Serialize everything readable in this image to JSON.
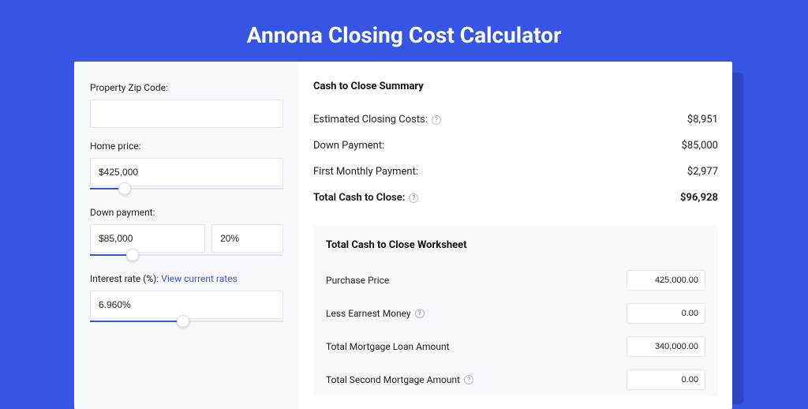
{
  "colors": {
    "page_bg": "#3655e5",
    "shadow_bg": "#2d47c2",
    "card_bg": "#ffffff",
    "panel_bg": "#f7f9fc",
    "border": "#e2e5ea",
    "text": "#222222",
    "link": "#3655e5"
  },
  "page_title": "Annona Closing Cost Calculator",
  "left": {
    "zip_label": "Property Zip Code:",
    "zip_value": "",
    "home_price_label": "Home price:",
    "home_price_value": "$425,000",
    "home_price_slider": {
      "fill_pct": 18,
      "thumb_pct": 18
    },
    "down_payment_label": "Down payment:",
    "down_payment_value": "$85,000",
    "down_payment_pct": "20%",
    "down_payment_slider": {
      "fill_pct": 22,
      "thumb_pct": 22
    },
    "interest_label": "Interest rate (%): ",
    "interest_link": "View current rates",
    "interest_value": "6.960%",
    "interest_slider": {
      "fill_pct": 48,
      "thumb_pct": 48
    }
  },
  "summary": {
    "title": "Cash to Close Summary",
    "rows": [
      {
        "label": "Estimated Closing Costs:",
        "help": true,
        "value": "$8,951",
        "bold": false
      },
      {
        "label": "Down Payment:",
        "help": false,
        "value": "$85,000",
        "bold": false
      },
      {
        "label": "First Monthly Payment:",
        "help": false,
        "value": "$2,977",
        "bold": false
      },
      {
        "label": "Total Cash to Close:",
        "help": true,
        "value": "$96,928",
        "bold": true
      }
    ]
  },
  "worksheet": {
    "title": "Total Cash to Close Worksheet",
    "rows": [
      {
        "label": "Purchase Price",
        "help": false,
        "value": "425,000.00"
      },
      {
        "label": "Less Earnest Money",
        "help": true,
        "value": "0.00"
      },
      {
        "label": "Total Mortgage Loan Amount",
        "help": false,
        "value": "340,000.00"
      },
      {
        "label": "Total Second Mortgage Amount",
        "help": true,
        "value": "0.00"
      }
    ]
  }
}
